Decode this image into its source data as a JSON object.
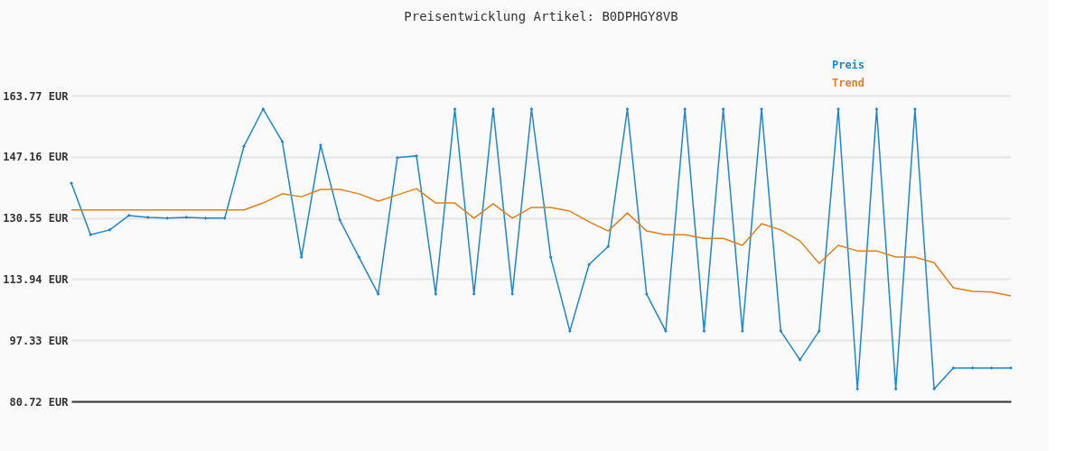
{
  "chart_data": {
    "type": "line",
    "title": "Preisentwicklung Artikel: B0DPHGY8VB",
    "categories": [
      null,
      null,
      null,
      null,
      null,
      null,
      null,
      null,
      null,
      null,
      null,
      null,
      null,
      null,
      null,
      null,
      null,
      null,
      null,
      null,
      null,
      null,
      null,
      null,
      null,
      null,
      null,
      null,
      null,
      null,
      null,
      null,
      null,
      null,
      null,
      null,
      null,
      null,
      null,
      null,
      null,
      null,
      null,
      null,
      null,
      null,
      null,
      null,
      null,
      null
    ],
    "series": [
      {
        "name": "Preis",
        "color": "#1a87d0",
        "marker": "diamond",
        "values": [
          140.0,
          126.0,
          127.3,
          131.2,
          130.7,
          130.5,
          130.7,
          130.5,
          130.5,
          150.0,
          160.1,
          151.3,
          119.9,
          150.3,
          130.0,
          119.9,
          109.9,
          146.9,
          147.4,
          109.9,
          160.1,
          109.9,
          160.1,
          109.9,
          160.1,
          119.9,
          99.8,
          117.9,
          122.8,
          160.1,
          109.9,
          99.8,
          160.1,
          99.8,
          160.1,
          99.8,
          160.1,
          99.8,
          92.0,
          99.8,
          160.1,
          84.1,
          160.1,
          84.1,
          160.1,
          84.1,
          89.8,
          89.8,
          89.8,
          89.8
        ]
      },
      {
        "name": "Trend",
        "color": "#e0801a",
        "marker": "none",
        "values": [
          132.7,
          132.7,
          132.7,
          132.7,
          132.7,
          132.7,
          132.7,
          132.7,
          132.7,
          132.7,
          134.6,
          137.1,
          136.3,
          138.3,
          138.3,
          137.1,
          135.1,
          136.8,
          138.5,
          134.6,
          134.6,
          130.5,
          134.4,
          130.5,
          133.4,
          133.4,
          132.4,
          129.5,
          127.0,
          131.9,
          127.0,
          126.0,
          126.0,
          125.0,
          125.0,
          123.1,
          129.0,
          127.3,
          124.3,
          118.2,
          123.1,
          121.6,
          121.6,
          119.9,
          119.9,
          118.4,
          111.6,
          110.6,
          110.4,
          109.4
        ]
      }
    ],
    "ylim": [
      80.72,
      163.77
    ],
    "yticks": [
      {
        "value": 80.72,
        "label": "80.72 EUR"
      },
      {
        "value": 97.33,
        "label": "97.33 EUR"
      },
      {
        "value": 113.94,
        "label": "113.94 EUR"
      },
      {
        "value": 130.55,
        "label": "130.55 EUR"
      },
      {
        "value": 147.16,
        "label": "147.16 EUR"
      },
      {
        "value": 163.77,
        "label": "163.77 EUR"
      }
    ],
    "grid": "y",
    "legend": "top right",
    "line_style": "solid"
  }
}
